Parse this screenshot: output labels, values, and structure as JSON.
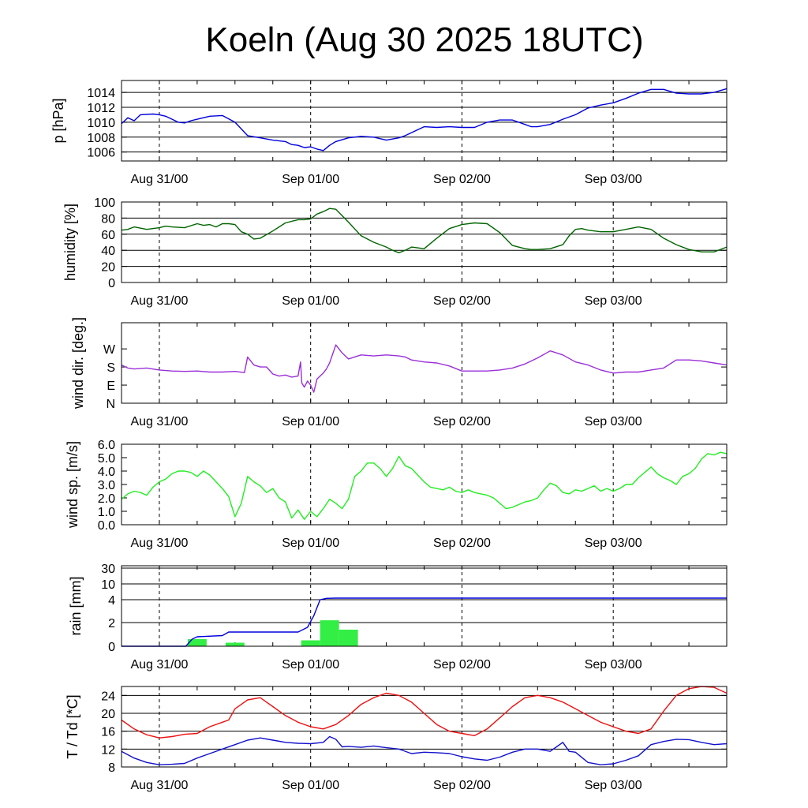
{
  "title": "Koeln (Aug 30 2025 18UTC)",
  "colors": {
    "pressure": "#0000dd",
    "humidity": "#006400",
    "wind_dir": "#9a30d8",
    "wind_speed": "#22ee22",
    "rain_bars": "#33ee44",
    "rain_cum": "#0000dd",
    "temperature": "#ee1111",
    "dewpoint": "#1111cc"
  },
  "chart_data": [
    {
      "type": "line",
      "id": "pressure",
      "ylabel": "p [hPa]",
      "ylim": [
        1004.8,
        1015.6
      ],
      "yticks": [
        1006,
        1008,
        1010,
        1012,
        1014
      ],
      "ytick_labels": [
        "1006",
        "1008",
        "1010",
        "1012",
        "1014"
      ],
      "grid_y": [
        1006,
        1008,
        1010,
        1012,
        1014
      ],
      "x_unit": "hours since Aug 30 18UTC",
      "xlim": [
        0,
        96
      ],
      "xticks": [
        6,
        30,
        54,
        78
      ],
      "xtick_labels": [
        "Aug 31/00",
        "Sep 01/00",
        "Sep 02/00",
        "Sep 03/00"
      ],
      "series": [
        {
          "name": "pressure",
          "x": [
            0,
            1,
            2,
            3,
            5,
            6,
            7,
            9,
            10,
            11,
            14,
            16,
            18,
            20,
            22,
            24,
            26,
            27,
            28,
            29,
            30,
            31,
            32,
            33,
            34,
            36,
            38,
            40,
            42,
            44,
            45,
            46,
            48,
            50,
            52,
            54,
            56,
            58,
            60,
            62,
            64,
            65,
            66,
            68,
            70,
            72,
            74,
            76,
            78,
            80,
            82,
            84,
            86,
            88,
            90,
            92,
            94,
            96
          ],
          "y": [
            1009.8,
            1010.6,
            1010.2,
            1011.0,
            1011.1,
            1011.0,
            1010.8,
            1010.0,
            1009.9,
            1010.2,
            1010.8,
            1010.9,
            1010.0,
            1008.2,
            1007.9,
            1007.6,
            1007.4,
            1007.0,
            1006.9,
            1006.6,
            1006.7,
            1006.4,
            1006.2,
            1006.9,
            1007.4,
            1007.9,
            1008.1,
            1008.0,
            1007.6,
            1007.9,
            1008.2,
            1008.6,
            1009.4,
            1009.3,
            1009.4,
            1009.3,
            1009.3,
            1010.0,
            1010.3,
            1010.3,
            1009.7,
            1009.4,
            1009.4,
            1009.7,
            1010.4,
            1011.0,
            1011.9,
            1012.3,
            1012.6,
            1013.2,
            1013.9,
            1014.4,
            1014.4,
            1013.9,
            1013.8,
            1013.8,
            1014.0,
            1014.5
          ]
        }
      ]
    },
    {
      "type": "line",
      "id": "humidity",
      "ylabel": "humidity [%]",
      "ylim": [
        0,
        100
      ],
      "yticks": [
        0,
        20,
        40,
        60,
        80,
        100
      ],
      "ytick_labels": [
        "0",
        "20",
        "40",
        "60",
        "80",
        "100"
      ],
      "grid_y": [
        20,
        40,
        60,
        80
      ],
      "xlim": [
        0,
        96
      ],
      "xticks": [
        6,
        30,
        54,
        78
      ],
      "xtick_labels": [
        "Aug 31/00",
        "Sep 01/00",
        "Sep 02/00",
        "Sep 03/00"
      ],
      "series": [
        {
          "name": "humidity",
          "x": [
            0,
            1,
            2,
            4,
            6,
            7,
            8,
            10,
            12,
            13,
            14,
            15,
            16,
            17,
            18,
            19,
            20,
            21,
            22,
            24,
            26,
            28,
            29,
            30,
            31,
            32,
            33,
            34,
            36,
            38,
            40,
            42,
            43,
            44,
            45,
            46,
            48,
            50,
            52,
            54,
            56,
            58,
            60,
            62,
            64,
            65,
            66,
            68,
            70,
            71,
            72,
            73,
            74,
            76,
            78,
            80,
            82,
            84,
            86,
            88,
            90,
            92,
            94,
            96
          ],
          "y": [
            65,
            66,
            69,
            66,
            68,
            70,
            69,
            68,
            73,
            71,
            72,
            69,
            73,
            73,
            72,
            63,
            60,
            54,
            55,
            64,
            74,
            78,
            78,
            79,
            85,
            88,
            92,
            91,
            75,
            58,
            50,
            44,
            40,
            37,
            40,
            44,
            42,
            55,
            67,
            72,
            74,
            73,
            62,
            46,
            42,
            41,
            41,
            42,
            47,
            58,
            66,
            67,
            65,
            63,
            63,
            66,
            69,
            66,
            55,
            47,
            41,
            38,
            38,
            44
          ]
        }
      ]
    },
    {
      "type": "line",
      "id": "wind_dir",
      "ylabel": "wind dir. [deg.]",
      "ylim": [
        0,
        400
      ],
      "yticks": [
        0,
        90,
        180,
        270
      ],
      "ytick_labels": [
        "N",
        "E",
        "S",
        "W"
      ],
      "grid_y": [],
      "xlim": [
        0,
        96
      ],
      "xticks": [
        6,
        30,
        54,
        78
      ],
      "xtick_labels": [
        "Aug 31/00",
        "Sep 01/00",
        "Sep 02/00",
        "Sep 03/00"
      ],
      "series": [
        {
          "name": "wind direction",
          "x": [
            0,
            1,
            2,
            4,
            6,
            8,
            10,
            12,
            14,
            16,
            18,
            19.5,
            20,
            21,
            22,
            23,
            24,
            25,
            26,
            27,
            28,
            28.4,
            28.6,
            29,
            29.5,
            30,
            30.5,
            31,
            32,
            32.5,
            33,
            34,
            35,
            36,
            38,
            40,
            42,
            44,
            45,
            46,
            48,
            50,
            52,
            54,
            56,
            58,
            60,
            62,
            64,
            66,
            68,
            70,
            72,
            74,
            76,
            78,
            80,
            82,
            84,
            86,
            88,
            90,
            92,
            94,
            96
          ],
          "y": [
            190,
            175,
            170,
            175,
            165,
            160,
            158,
            160,
            155,
            155,
            158,
            152,
            230,
            190,
            180,
            180,
            145,
            135,
            140,
            130,
            135,
            205,
            100,
            80,
            110,
            90,
            55,
            120,
            150,
            170,
            200,
            290,
            250,
            220,
            240,
            235,
            240,
            235,
            230,
            215,
            205,
            200,
            185,
            160,
            160,
            160,
            165,
            175,
            195,
            225,
            260,
            240,
            205,
            190,
            165,
            150,
            155,
            155,
            165,
            175,
            215,
            215,
            210,
            200,
            190
          ]
        }
      ]
    },
    {
      "type": "line",
      "id": "wind_speed",
      "ylabel": "wind sp. [m/s]",
      "ylim": [
        0,
        6.0
      ],
      "yticks": [
        0,
        1,
        2,
        3,
        4,
        5,
        6
      ],
      "ytick_labels": [
        "0.0",
        "1.0",
        "2.0",
        "3.0",
        "4.0",
        "5.0",
        "6.0"
      ],
      "grid_y": [],
      "xlim": [
        0,
        96
      ],
      "xticks": [
        6,
        30,
        54,
        78
      ],
      "xtick_labels": [
        "Aug 31/00",
        "Sep 01/00",
        "Sep 02/00",
        "Sep 03/00"
      ],
      "series": [
        {
          "name": "wind speed",
          "x": [
            0,
            1,
            2,
            3,
            4,
            5,
            6,
            7,
            8,
            9,
            10,
            11,
            12,
            13,
            14,
            15,
            16,
            17,
            18,
            19,
            20,
            21,
            22,
            23,
            24,
            25,
            26,
            27,
            28,
            29,
            30,
            31,
            32,
            33,
            34,
            35,
            36,
            37,
            38,
            39,
            40,
            41,
            42,
            43,
            44,
            45,
            46,
            47,
            48,
            49,
            50,
            51,
            52,
            53,
            54,
            55,
            56,
            57,
            58,
            59,
            60,
            61,
            62,
            63,
            64,
            65,
            66,
            67,
            68,
            69,
            70,
            71,
            72,
            73,
            74,
            75,
            76,
            77,
            78,
            79,
            80,
            81,
            82,
            83,
            84,
            85,
            86,
            87,
            88,
            89,
            90,
            91,
            92,
            93,
            94,
            95,
            96
          ],
          "y": [
            1.9,
            2.3,
            2.5,
            2.4,
            2.2,
            2.8,
            3.2,
            3.4,
            3.8,
            4.0,
            4.0,
            3.9,
            3.6,
            4.0,
            3.7,
            3.2,
            2.7,
            2.1,
            0.6,
            1.6,
            3.6,
            3.2,
            2.9,
            2.4,
            2.7,
            2.0,
            1.7,
            0.5,
            1.1,
            0.4,
            1.0,
            0.6,
            1.2,
            1.9,
            1.6,
            1.2,
            1.9,
            3.6,
            4.0,
            4.6,
            4.6,
            4.2,
            3.6,
            4.2,
            5.1,
            4.4,
            4.2,
            3.7,
            3.2,
            2.8,
            2.7,
            2.6,
            2.8,
            2.5,
            2.4,
            2.6,
            2.4,
            2.3,
            2.2,
            2.0,
            1.6,
            1.2,
            1.3,
            1.5,
            1.7,
            1.8,
            2.0,
            2.6,
            3.1,
            2.9,
            2.4,
            2.3,
            2.6,
            2.5,
            2.7,
            2.9,
            2.5,
            2.7,
            2.5,
            2.7,
            3.0,
            3.0,
            3.5,
            3.9,
            4.3,
            3.8,
            3.5,
            3.3,
            3.0,
            3.6,
            3.8,
            4.2,
            4.9,
            5.3,
            5.2,
            5.4,
            5.3
          ]
        }
      ]
    },
    {
      "type": "bar",
      "id": "rain",
      "ylabel": "rain [mm]",
      "scale_note": "nonlinear axis",
      "yticks": [
        0,
        2,
        4,
        10,
        30
      ],
      "ytick_labels": [
        "0",
        "2",
        "4",
        "10",
        "30"
      ],
      "grid_y": [
        2,
        4,
        10,
        30
      ],
      "xlim": [
        0,
        96
      ],
      "xticks": [
        6,
        30,
        54,
        78
      ],
      "xtick_labels": [
        "Aug 31/00",
        "Sep 01/00",
        "Sep 02/00",
        "Sep 03/00"
      ],
      "bars": {
        "name": "hourly rain",
        "x_start": [
          10.5,
          16.5,
          28.5,
          31.5,
          34.5
        ],
        "x_end": [
          13.5,
          19.5,
          31.5,
          34.5,
          37.5
        ],
        "values": [
          0.6,
          0.3,
          0.5,
          2.2,
          1.4
        ]
      },
      "series": [
        {
          "name": "accumulated rain",
          "x": [
            0,
            10.2,
            11.2,
            12.0,
            16.0,
            17.0,
            28.0,
            29.5,
            30.5,
            31.5,
            32.5,
            34.0,
            96
          ],
          "y": [
            0,
            0,
            0.6,
            0.8,
            0.9,
            1.2,
            1.2,
            1.6,
            2.6,
            4.0,
            4.5,
            4.6,
            4.6
          ]
        }
      ]
    },
    {
      "type": "line",
      "id": "temp_dewpoint",
      "ylabel": "T / Td [*C]",
      "ylim": [
        8,
        26
      ],
      "yticks": [
        8,
        12,
        16,
        20,
        24
      ],
      "ytick_labels": [
        "8",
        "12",
        "16",
        "20",
        "24"
      ],
      "grid_y": [
        12,
        16,
        20,
        24
      ],
      "xlim": [
        0,
        96
      ],
      "xticks": [
        6,
        30,
        54,
        78
      ],
      "xtick_labels": [
        "Aug 31/00",
        "Sep 01/00",
        "Sep 02/00",
        "Sep 03/00"
      ],
      "series": [
        {
          "name": "T",
          "x": [
            0,
            2,
            4,
            6,
            8,
            10,
            12,
            14,
            16,
            17,
            18,
            20,
            22,
            24,
            26,
            28,
            30,
            32,
            34,
            36,
            38,
            40,
            42,
            44,
            46,
            48,
            50,
            52,
            54,
            56,
            58,
            60,
            62,
            64,
            66,
            68,
            70,
            72,
            74,
            76,
            78,
            80,
            82,
            84,
            86,
            88,
            90,
            92,
            94,
            96
          ],
          "y": [
            18.5,
            16.5,
            15.2,
            14.5,
            14.8,
            15.3,
            15.5,
            17.0,
            18.0,
            18.5,
            21.0,
            23.0,
            23.5,
            21.5,
            19.5,
            18.0,
            17.0,
            16.5,
            17.5,
            19.5,
            22.0,
            23.5,
            24.5,
            24.0,
            22.5,
            20.0,
            17.5,
            16.0,
            15.5,
            15.0,
            16.5,
            19.0,
            21.5,
            23.5,
            24.0,
            23.5,
            22.5,
            21.0,
            19.5,
            18.0,
            17.0,
            16.0,
            15.5,
            16.5,
            20.5,
            24.0,
            25.5,
            26.0,
            25.8,
            24.5
          ]
        },
        {
          "name": "Td",
          "x": [
            0,
            2,
            4,
            6,
            8,
            10,
            12,
            14,
            16,
            18,
            20,
            22,
            24,
            26,
            28,
            30,
            32,
            33,
            34,
            35,
            36,
            38,
            40,
            42,
            44,
            46,
            48,
            50,
            52,
            54,
            56,
            58,
            60,
            62,
            64,
            66,
            68,
            69,
            70,
            71,
            72,
            74,
            76,
            78,
            80,
            82,
            84,
            86,
            88,
            90,
            92,
            94,
            96
          ],
          "y": [
            11.5,
            10.0,
            9.0,
            8.5,
            8.6,
            8.8,
            10.0,
            11.0,
            12.0,
            13.0,
            14.0,
            14.5,
            14.0,
            13.5,
            13.3,
            13.2,
            13.5,
            14.8,
            14.2,
            12.5,
            12.6,
            12.4,
            12.7,
            12.3,
            12.0,
            11.0,
            11.3,
            11.2,
            11.0,
            10.3,
            9.8,
            9.5,
            10.2,
            11.3,
            12.0,
            12.0,
            11.5,
            12.5,
            13.5,
            11.5,
            11.3,
            9.0,
            8.5,
            8.7,
            9.5,
            10.5,
            13.0,
            13.7,
            14.2,
            14.1,
            13.5,
            13.0,
            13.2
          ]
        }
      ]
    }
  ]
}
